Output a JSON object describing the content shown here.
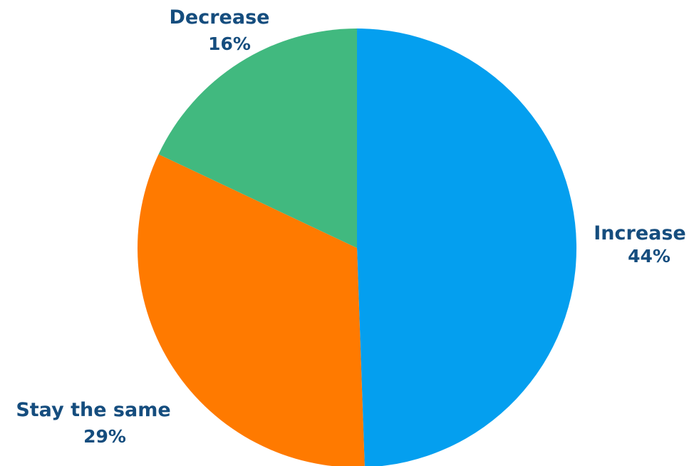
{
  "chart_data": {
    "type": "pie",
    "title": "",
    "slices": [
      {
        "label": "Increase",
        "value": 44,
        "value_label": "44",
        "unit": "%",
        "color": "#049fef"
      },
      {
        "label": "Stay the same",
        "value": 29,
        "value_label": "29",
        "unit": "%",
        "color": "#ff7a00"
      },
      {
        "label": "Decrease",
        "value": 16,
        "value_label": "16",
        "unit": "%",
        "color": "#41b97f"
      }
    ],
    "label_color": "#154d7e",
    "start_angle": "12 o'clock",
    "direction": "clockwise"
  }
}
